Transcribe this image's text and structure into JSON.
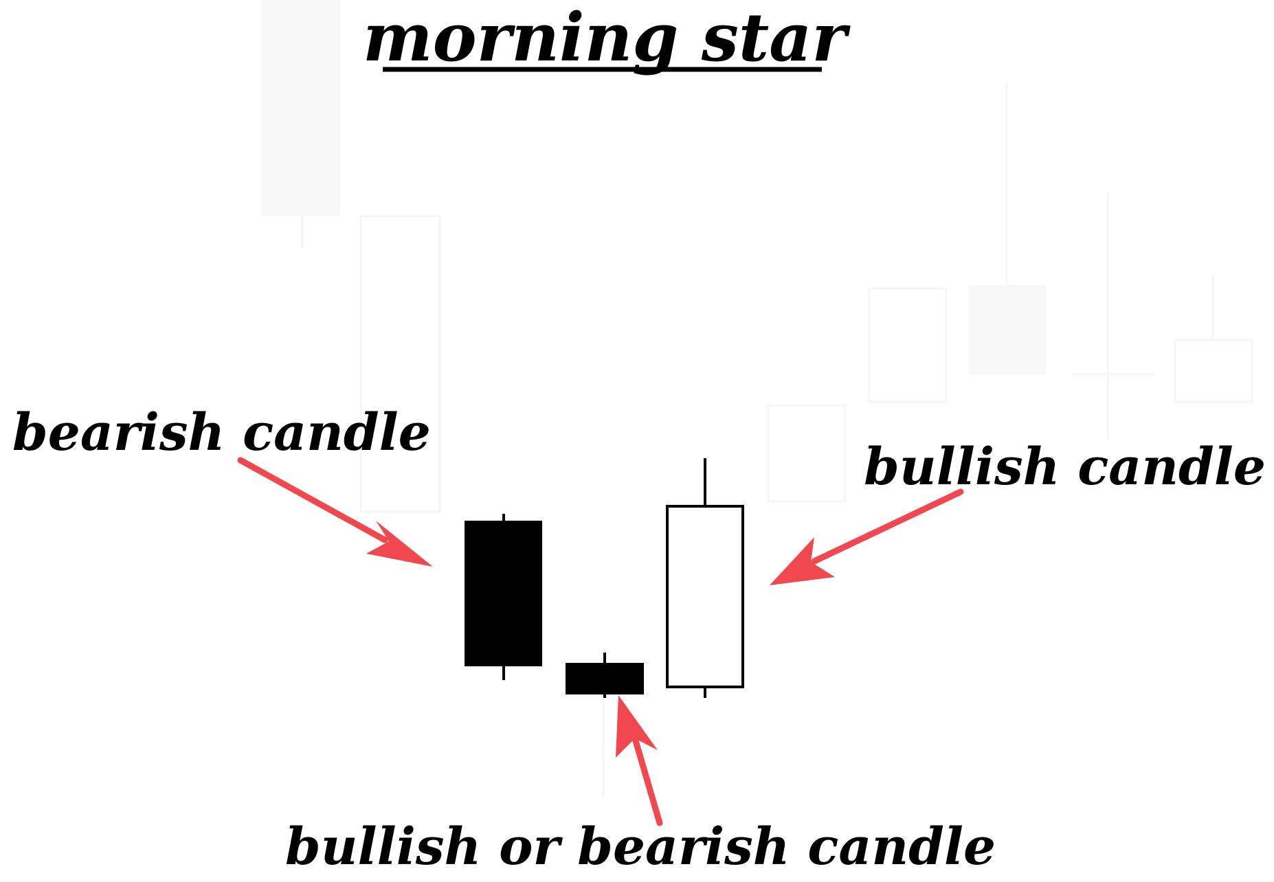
{
  "title": "morning star",
  "labels": {
    "first": "bearish candle",
    "second": "bullish or bearish candle",
    "third": "bullish candle"
  },
  "colors": {
    "arrow": "#f0484e",
    "candle_fill_bearish": "#000000",
    "candle_fill_bullish": "#ffffff",
    "outline": "#000000"
  }
}
